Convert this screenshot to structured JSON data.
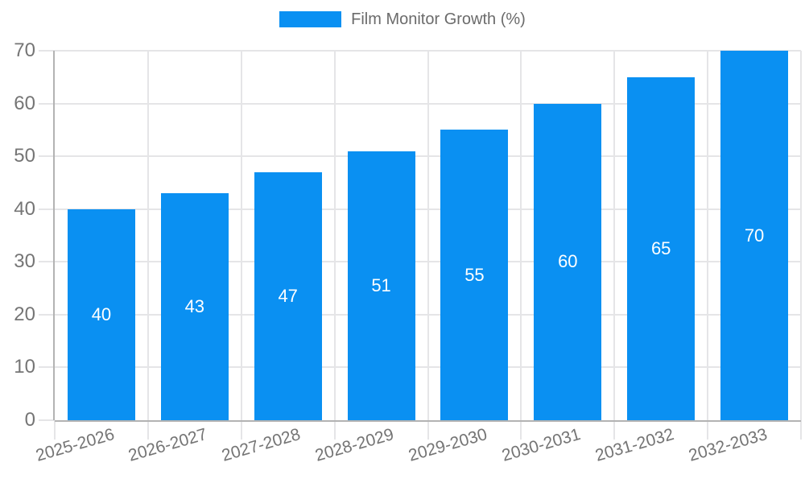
{
  "chart_data": {
    "type": "bar",
    "title": "",
    "legend": {
      "label": "Film Monitor Growth (%)",
      "position": "top-center"
    },
    "categories": [
      "2025-2026",
      "2026-2027",
      "2027-2028",
      "2028-2029",
      "2029-2030",
      "2030-2031",
      "2031-2032",
      "2032-2033"
    ],
    "series": [
      {
        "name": "Film Monitor Growth (%)",
        "values": [
          40,
          43,
          47,
          51,
          55,
          60,
          65,
          70
        ]
      }
    ],
    "value_labels": [
      "40",
      "43",
      "47",
      "51",
      "55",
      "60",
      "65",
      "70"
    ],
    "xlabel": "",
    "ylabel": "",
    "ylim": [
      0,
      70
    ],
    "y_ticks": [
      0,
      10,
      20,
      30,
      40,
      50,
      60,
      70
    ],
    "grid": true,
    "colors": {
      "bar": "#0a90f2",
      "grid": "#e5e5e7",
      "axis": "#b3b3b3",
      "tick_text": "#757575",
      "legend_text": "#6b6b6b",
      "value_text": "#ffffff",
      "background": "#ffffff"
    }
  }
}
